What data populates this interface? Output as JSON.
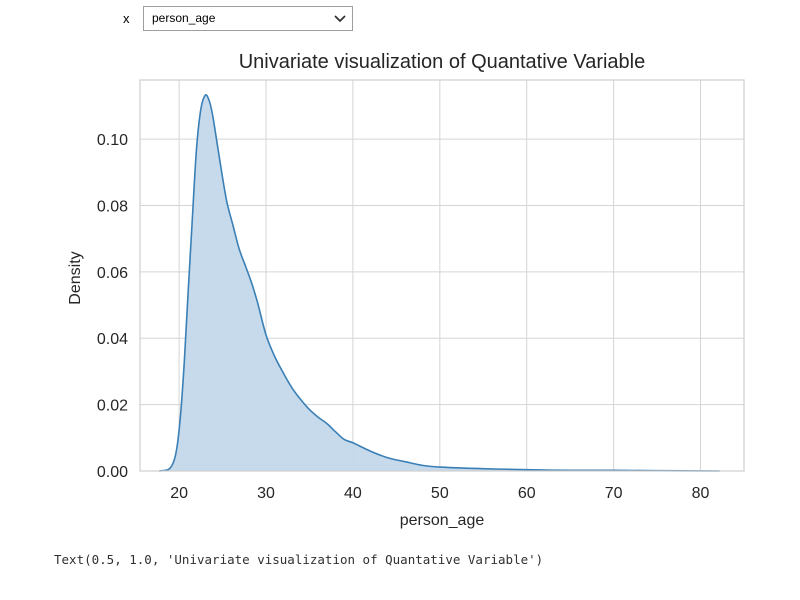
{
  "widget": {
    "label": "x",
    "selected": "person_age"
  },
  "output": {
    "text": "Text(0.5, 1.0, 'Univariate visualization of Quantative Variable')"
  },
  "colors": {
    "line": "#3a7fb5",
    "fill": "#c3d8ea",
    "grid": "#d5d5d5",
    "frame": "#cfcfcf"
  },
  "chart_data": {
    "type": "area",
    "title": "Univariate visualization of Quantative Variable",
    "xlabel": "person_age",
    "ylabel": "Density",
    "xlim": [
      15.5,
      85
    ],
    "ylim": [
      0,
      0.1178
    ],
    "xticks": [
      20,
      30,
      40,
      50,
      60,
      70,
      80
    ],
    "yticks": [
      0.0,
      0.02,
      0.04,
      0.06,
      0.08,
      0.1
    ],
    "ytick_labels": [
      "0.00",
      "0.02",
      "0.04",
      "0.06",
      "0.08",
      "0.10"
    ],
    "grid": true,
    "x": [
      17.7,
      18.8,
      19.4,
      19.8,
      20.2,
      20.6,
      21.0,
      21.5,
      22.0,
      22.5,
      23.0,
      23.4,
      23.8,
      24.3,
      24.9,
      25.5,
      26.2,
      26.9,
      27.6,
      28.3,
      29.0,
      30.0,
      31.0,
      32.0,
      33.0,
      34.0,
      35.0,
      36.0,
      37.0,
      38.0,
      39.0,
      40.0,
      42.0,
      44.0,
      46.0,
      48.0,
      50.0,
      55.0,
      60.0,
      65.0,
      70.0,
      75.0,
      82.2
    ],
    "y": [
      0.0,
      0.0005,
      0.003,
      0.008,
      0.018,
      0.033,
      0.052,
      0.075,
      0.097,
      0.109,
      0.1132,
      0.112,
      0.108,
      0.1,
      0.09,
      0.081,
      0.074,
      0.067,
      0.062,
      0.057,
      0.051,
      0.041,
      0.0345,
      0.0295,
      0.025,
      0.0215,
      0.0185,
      0.0162,
      0.0143,
      0.0118,
      0.0095,
      0.0085,
      0.006,
      0.004,
      0.0028,
      0.0017,
      0.0012,
      0.0007,
      0.0004,
      0.0002,
      0.0002,
      0.0001,
      0.0
    ]
  }
}
